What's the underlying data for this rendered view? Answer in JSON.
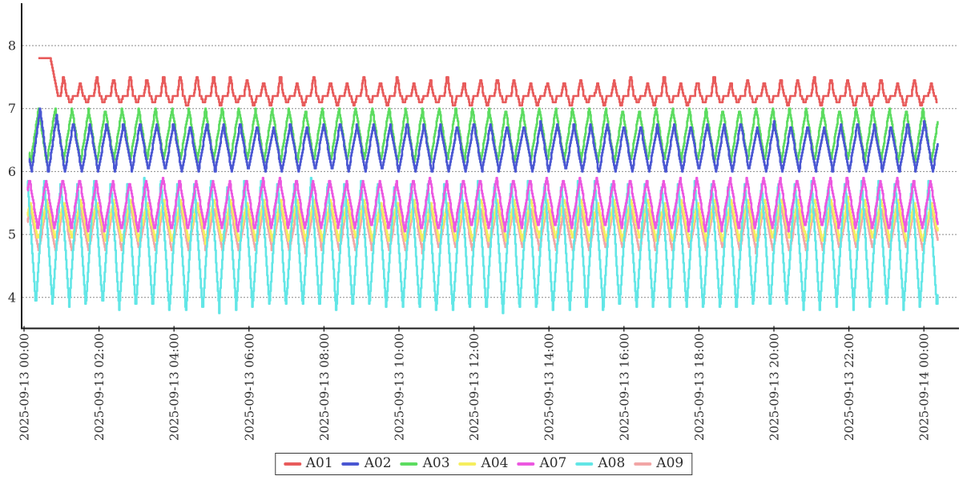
{
  "chart_data": {
    "type": "line",
    "title": "",
    "xlabel": "",
    "ylabel": "",
    "background": "#ffffff",
    "axis_color": "#1a1a1a",
    "grid": {
      "show": true,
      "style": "dashed",
      "color": "#8a8a8a"
    },
    "x_axis": {
      "time_start": "2025-09-13 00:00",
      "time_end": "2025-09-14 00:00",
      "tick_interval_hours": 2,
      "tick_labels": [
        "2025-09-13 00:00",
        "2025-09-13 02:00",
        "2025-09-13 04:00",
        "2025-09-13 06:00",
        "2025-09-13 08:00",
        "2025-09-13 10:00",
        "2025-09-13 12:00",
        "2025-09-13 14:00",
        "2025-09-13 16:00",
        "2025-09-13 18:00",
        "2025-09-13 20:00",
        "2025-09-13 22:00",
        "2025-09-14 00:00"
      ]
    },
    "y_axis": {
      "tick_values": [
        8,
        7,
        6,
        5,
        4
      ],
      "tick_labels": [
        "8",
        "7",
        "6",
        "5",
        "4"
      ],
      "ylim": [
        3.5,
        8.65
      ]
    },
    "waveform": {
      "period_minutes": 26.7,
      "sample_minutes": 1,
      "quantize_step": 0.05,
      "end_minutes": 1462
    },
    "series": [
      {
        "name": "A01",
        "color": "#e85b5b",
        "kind": "pulse",
        "base": 7.2,
        "peak": 7.45,
        "dip": 7.08,
        "peak_jitter": 0.14,
        "dip_jitter": 0.06,
        "start_value": 7.8,
        "start_minutes": 23,
        "drop_start": 42,
        "drop_end": 54
      },
      {
        "name": "A02",
        "color": "#4a57d2",
        "kind": "triangle",
        "min": 6.0,
        "max": 6.75,
        "phase": 0.56,
        "peak_jitter": 0.08,
        "trough_jitter": 0.06,
        "start_minutes": 8,
        "first_cycle_boosts": {
          "1": 0.25,
          "2": 0.12
        }
      },
      {
        "name": "A03",
        "color": "#5cdc60",
        "kind": "triangle",
        "min": 6.15,
        "max": 7.0,
        "phase": 0.64,
        "peak_jitter": 0.04,
        "trough_jitter": 0.08,
        "start_minutes": 8
      },
      {
        "name": "A04",
        "color": "#f6ee5e",
        "kind": "triangle",
        "min": 4.9,
        "max": 5.55,
        "phase": 0.14,
        "peak_jitter": 0.07,
        "trough_jitter": 0.08,
        "start_minutes": 5
      },
      {
        "name": "A07",
        "color": "#ec58e0",
        "kind": "triangle",
        "min": 5.08,
        "max": 5.88,
        "phase": 0.19,
        "peak_jitter": 0.07,
        "trough_jitter": 0.09,
        "start_minutes": 5
      },
      {
        "name": "A08",
        "color": "#62e6e6",
        "kind": "triangle",
        "min": 3.82,
        "max": 5.85,
        "phase": 0.31,
        "peak_jitter": 0.08,
        "trough_jitter": 0.16,
        "start_minutes": 5
      },
      {
        "name": "A09",
        "color": "#f2a6a6",
        "kind": "triangle",
        "min": 4.75,
        "max": 5.45,
        "phase": 0.14,
        "peak_jitter": 0.07,
        "trough_jitter": 0.09,
        "start_minutes": 5
      }
    ],
    "draw_order": [
      "A01",
      "A03",
      "A02",
      "A09",
      "A04",
      "A08",
      "A07"
    ],
    "legend": {
      "position": "bottom-center",
      "entries": [
        "A01",
        "A02",
        "A03",
        "A04",
        "A07",
        "A08",
        "A09"
      ]
    }
  }
}
